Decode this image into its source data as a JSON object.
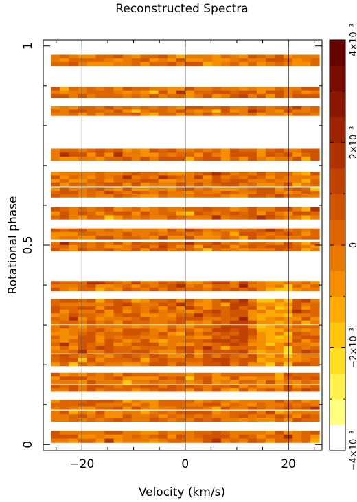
{
  "chart_data": {
    "type": "heatmap",
    "title": "Reconstructed Spectra",
    "xlabel": "Velocity (km/s)",
    "ylabel": "Rotational phase",
    "xlim": [
      -27.5,
      26.5
    ],
    "ylim": [
      -0.015,
      1.015
    ],
    "x_ticks": [
      {
        "value": -20,
        "label": "−20"
      },
      {
        "value": 0,
        "label": "0"
      },
      {
        "value": 20,
        "label": "20"
      }
    ],
    "y_ticks": [
      {
        "value": 0,
        "label": "0"
      },
      {
        "value": 0.5,
        "label": "0.5"
      },
      {
        "value": 1,
        "label": "1"
      }
    ],
    "vertical_lines": [
      -20,
      0,
      20
    ],
    "velocity_range": [
      -26,
      26
    ],
    "velocity_bins": 30,
    "phase_bands": [
      [
        0.005,
        0.035
      ],
      [
        0.058,
        0.085
      ],
      [
        0.088,
        0.112
      ],
      [
        0.133,
        0.15
      ],
      [
        0.152,
        0.18
      ],
      [
        0.197,
        0.227
      ],
      [
        0.229,
        0.3
      ],
      [
        0.302,
        0.365
      ],
      [
        0.385,
        0.41
      ],
      [
        0.485,
        0.508
      ],
      [
        0.515,
        0.542
      ],
      [
        0.565,
        0.595
      ],
      [
        0.62,
        0.644
      ],
      [
        0.648,
        0.684
      ],
      [
        0.712,
        0.742
      ],
      [
        0.825,
        0.848
      ],
      [
        0.87,
        0.897
      ],
      [
        0.95,
        0.978
      ]
    ],
    "colorbar": {
      "min": -0.004,
      "max": 0.004,
      "colors": [
        "#ffffff",
        "#ffff80",
        "#fff04d",
        "#ffdf20",
        "#ffc40c",
        "#ffaa00",
        "#f58f00",
        "#ea7a00",
        "#de6600",
        "#d05300",
        "#c04200",
        "#ae3200",
        "#9c2400",
        "#8a1700",
        "#780c00",
        "#660400"
      ],
      "ticks": [
        {
          "value": 0.004,
          "label": "4×10⁻³"
        },
        {
          "value": 0.002,
          "label": "2×10⁻³"
        },
        {
          "value": 0,
          "label": "0"
        },
        {
          "value": -0.002,
          "label": "−2×10⁻³"
        },
        {
          "value": -0.004,
          "label": "−4×10⁻³"
        }
      ]
    }
  }
}
